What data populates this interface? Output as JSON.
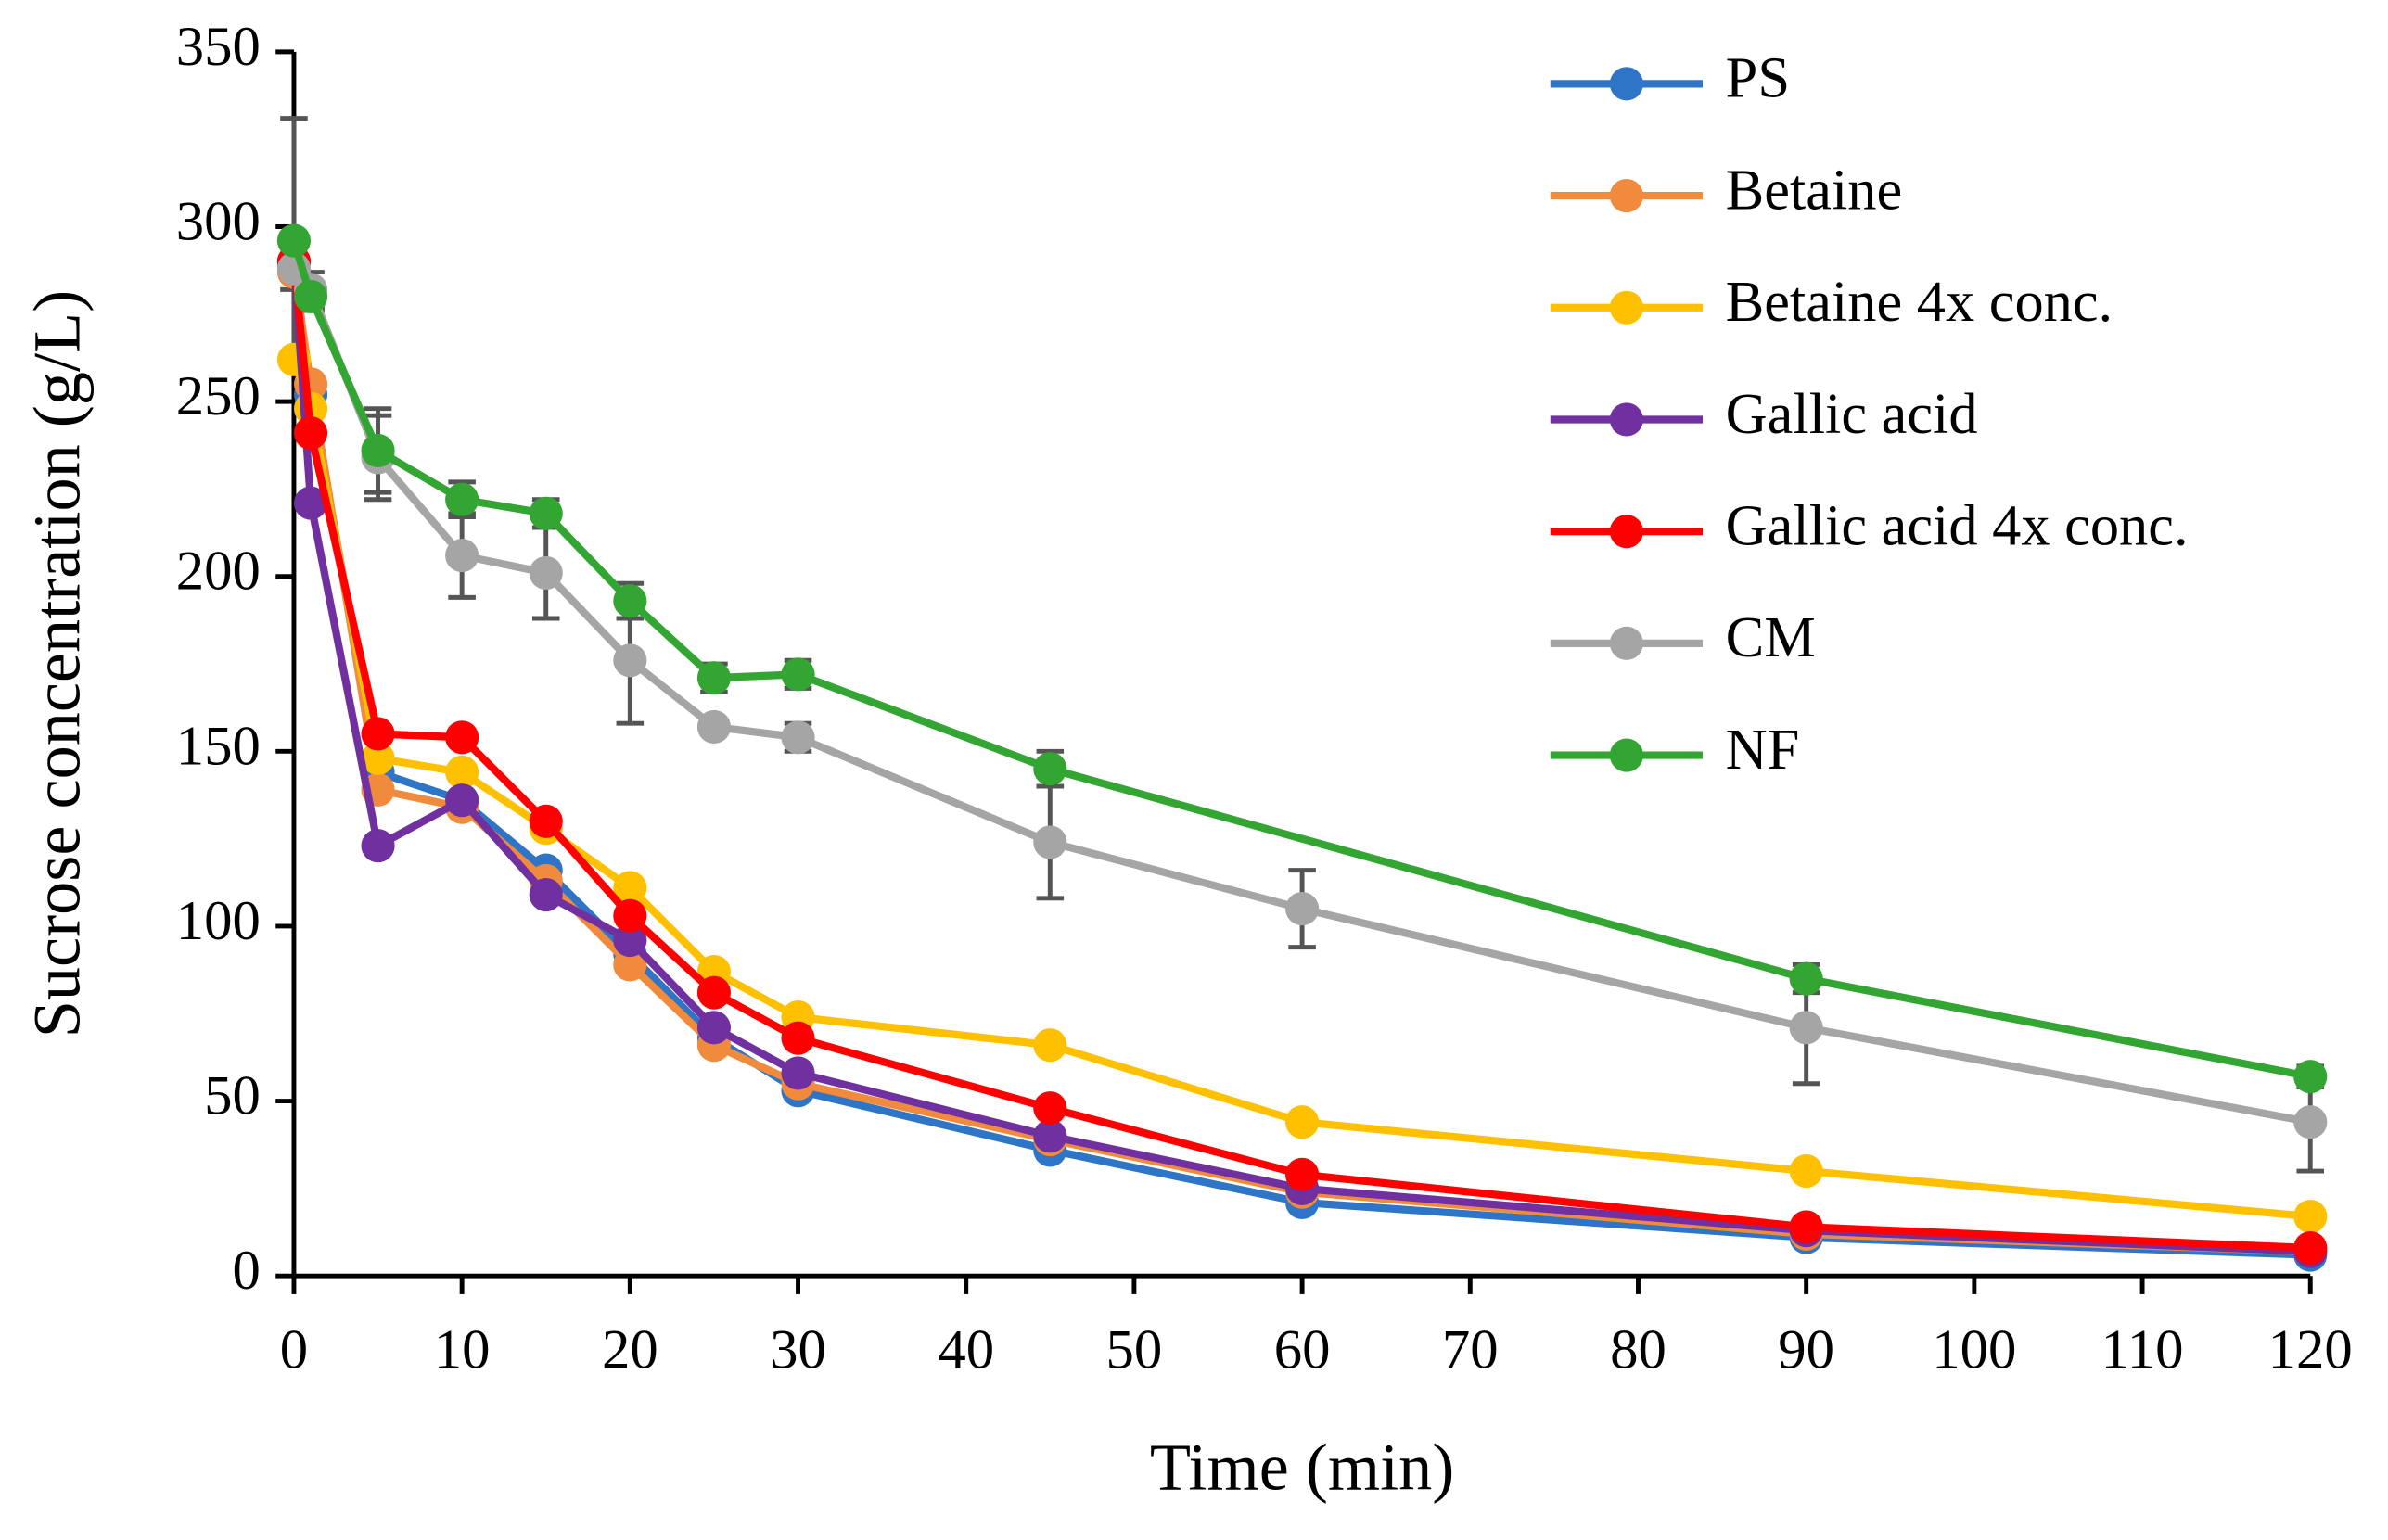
{
  "chart_data": {
    "type": "line",
    "xlabel": "Time (min)",
    "ylabel": "Sucrose concentration (g/L)",
    "xlim": [
      0,
      120
    ],
    "ylim": [
      0,
      350
    ],
    "xticks": [
      0,
      10,
      20,
      30,
      40,
      50,
      60,
      70,
      80,
      90,
      100,
      110,
      120
    ],
    "yticks": [
      0,
      50,
      100,
      150,
      200,
      250,
      300,
      350
    ],
    "legend": "upper right",
    "series": [
      {
        "name": "PS",
        "color": "#2e75c8",
        "x": [
          0,
          1,
          5,
          10,
          15,
          20,
          25,
          30,
          45,
          60,
          90,
          120
        ],
        "values": [
          290,
          252,
          144,
          136,
          116,
          92,
          68,
          53,
          36,
          21,
          11,
          6
        ]
      },
      {
        "name": "Betaine",
        "color": "#f08a3c",
        "x": [
          0,
          1,
          5,
          10,
          15,
          20,
          25,
          30,
          45,
          60,
          90,
          120
        ],
        "values": [
          287,
          255,
          139,
          134,
          113,
          89,
          66,
          55,
          39,
          24,
          12,
          7
        ]
      },
      {
        "name": "Betaine 4x conc.",
        "color": "#ffc000",
        "x": [
          0,
          1,
          5,
          10,
          15,
          20,
          25,
          30,
          45,
          60,
          90,
          120
        ],
        "values": [
          262,
          248,
          148,
          144,
          128,
          111,
          87,
          74,
          66,
          44,
          30,
          17
        ]
      },
      {
        "name": "Gallic acid",
        "color": "#7030a0",
        "x": [
          0,
          1,
          5,
          10,
          15,
          20,
          25,
          30,
          45,
          60,
          90,
          120
        ],
        "values": [
          290,
          221,
          123,
          136,
          109,
          96,
          71,
          58,
          40,
          25,
          13,
          7
        ]
      },
      {
        "name": "Gallic acid 4x conc.",
        "color": "#ff0000",
        "x": [
          0,
          1,
          5,
          10,
          15,
          20,
          25,
          30,
          45,
          60,
          90,
          120
        ],
        "values": [
          290,
          241,
          155,
          154,
          130,
          103,
          81,
          68,
          48,
          29,
          14,
          8
        ]
      },
      {
        "name": "CM",
        "color": "#a5a5a5",
        "x": [
          0,
          1,
          5,
          10,
          15,
          20,
          25,
          30,
          45,
          60,
          90,
          120
        ],
        "values": [
          288,
          282,
          234,
          206,
          201,
          176,
          157,
          154,
          124,
          105,
          71,
          44
        ],
        "errors": [
          6,
          5,
          12,
          12,
          13,
          18,
          2,
          4,
          16,
          11,
          16,
          14
        ]
      },
      {
        "name": "NF",
        "color": "#33a532",
        "x": [
          0,
          1,
          5,
          10,
          15,
          20,
          25,
          30,
          45,
          90,
          120
        ],
        "values": [
          296,
          280,
          236,
          222,
          218,
          193,
          171,
          172,
          145,
          85,
          57
        ],
        "errors": [
          35,
          4,
          12,
          5,
          4,
          5,
          4,
          4,
          5,
          4,
          3
        ]
      }
    ]
  }
}
